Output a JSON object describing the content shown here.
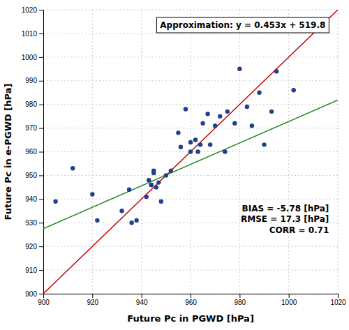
{
  "chart_data": {
    "type": "scatter",
    "x_label": "Future Pc in PGWD [hPa]",
    "y_label": "Future Pc in e-PGWD [hPa]",
    "series": [
      {
        "type": "scatter",
        "color": "#1f3f8f",
        "x": [
          905,
          912,
          920,
          922,
          932,
          935,
          936,
          938,
          942,
          943,
          944,
          944,
          945,
          945,
          946,
          947,
          948,
          950,
          952,
          955,
          956,
          958,
          960,
          960,
          962,
          963,
          964,
          965,
          967,
          968,
          970,
          972,
          974,
          975,
          978,
          980,
          983,
          985,
          988,
          990,
          993,
          995,
          1002
        ],
        "values": [
          939,
          953,
          942,
          931,
          935,
          944,
          930,
          931,
          941,
          948,
          946,
          946,
          952,
          951,
          945,
          947,
          939,
          950,
          952,
          968,
          962,
          978,
          964,
          960,
          965,
          960,
          963,
          972,
          976,
          963,
          971,
          975,
          960,
          977,
          972,
          995,
          979,
          971,
          985,
          963,
          977,
          994,
          986
        ]
      },
      {
        "type": "line",
        "color": "#cc0000",
        "x": [
          900,
          1020
        ],
        "values": [
          900,
          1020
        ]
      },
      {
        "type": "line",
        "color": "#228822",
        "x": [
          900,
          1020
        ],
        "values": [
          927.5,
          981.86
        ]
      }
    ],
    "xlim": [
      900,
      1020
    ],
    "ylim": [
      900,
      1020
    ],
    "xticks": [
      900,
      920,
      940,
      960,
      980,
      1000,
      1020
    ],
    "yticks": [
      900,
      910,
      920,
      930,
      940,
      950,
      960,
      970,
      980,
      990,
      1000,
      1010,
      1020
    ],
    "grid": true,
    "annotations": [
      "Approximation: y = 0.453x + 519.8",
      "BIAS = -5.78 [hPa]\nRMSE = 17.3 [hPa]\nCORR = 0.71"
    ]
  }
}
